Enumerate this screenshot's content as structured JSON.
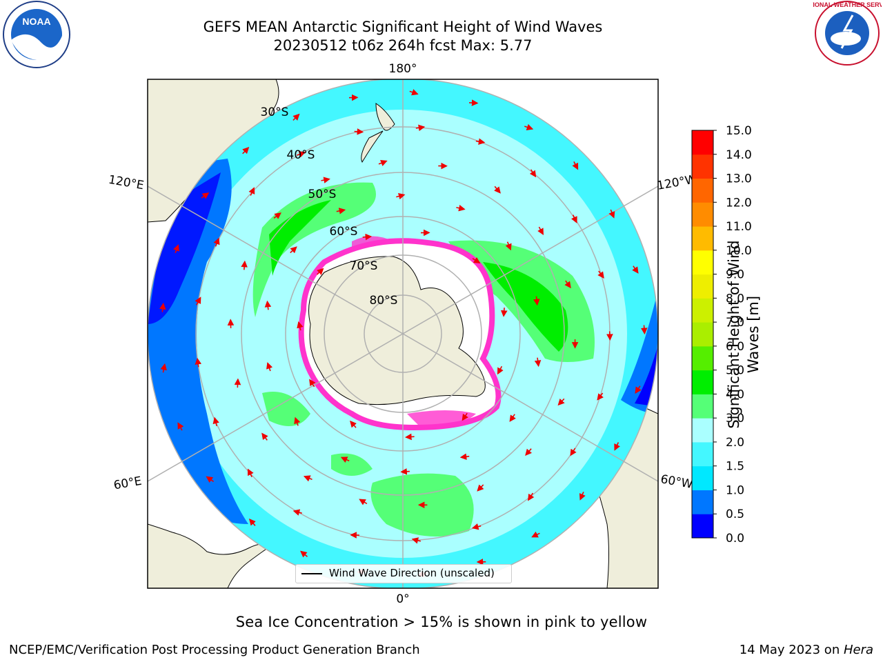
{
  "header": {
    "title_line1": "GEFS MEAN Antarctic Significant Height of Wind Waves",
    "title_line2": "20230512 t06z 264h fcst   Max: 5.77"
  },
  "logos": {
    "left": "noaa-logo",
    "left_text": "NOAA",
    "right": "nws-logo",
    "right_text": "NATIONAL WEATHER SERVICE"
  },
  "map": {
    "longitude_labels": [
      "180°",
      "120°E",
      "120°W",
      "60°E",
      "60°W",
      "0°"
    ],
    "latitude_labels": [
      "30°S",
      "40°S",
      "50°S",
      "60°S",
      "70°S",
      "80°S"
    ],
    "legend_label": "Wind Wave Direction (unscaled)",
    "colors": {
      "land": "#efeedb",
      "ice_free_pole": "#ffffff",
      "ice_edge": "#ff33cc",
      "arrow": "#ee0000",
      "gridline": "#b0b0b0"
    }
  },
  "colorbar": {
    "title": "Significant Height of Wind Waves [m]",
    "tick_labels": [
      "0.0",
      "0.5",
      "1.0",
      "1.5",
      "2.0",
      "3.0",
      "4.0",
      "5.0",
      "6.0",
      "7.0",
      "8.0",
      "9.0",
      "10.0",
      "11.0",
      "12.0",
      "13.0",
      "14.0",
      "15.0"
    ],
    "colors": [
      "#0000ff",
      "#0077ff",
      "#00e8ff",
      "#44f7ff",
      "#aaffff",
      "#55ff77",
      "#00ee00",
      "#55ee00",
      "#aaee00",
      "#ccf000",
      "#eeee00",
      "#ffff00",
      "#ffbb00",
      "#ff8c00",
      "#ff6600",
      "#ff3300",
      "#ff0000"
    ]
  },
  "footer": {
    "note": "Sea Ice Concentration > 15% is shown in pink to yellow",
    "left": "NCEP/EMC/Verification Post Processing Product Generation Branch",
    "right_date": "14 May 2023 on ",
    "right_host": "Hera"
  }
}
